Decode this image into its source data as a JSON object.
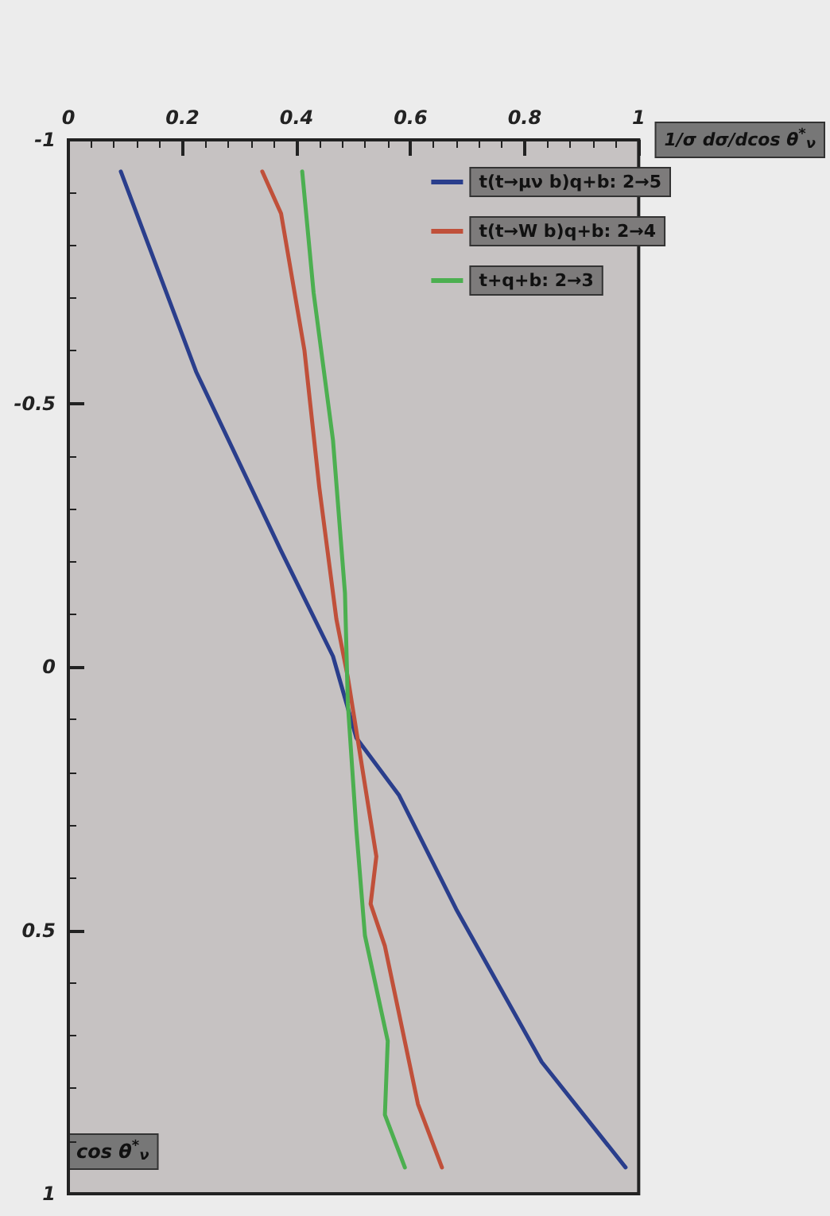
{
  "chart_data": {
    "type": "line",
    "ylabel": "cos θ$^{*}$$_{ν}$",
    "xlabel": "1/σ dσ/dcos θ$^{*}$$_{ν}$",
    "ylim": [
      1,
      -1
    ],
    "yticks": [
      -1,
      -0.5,
      0,
      0.5,
      1
    ],
    "xlim": [
      0,
      1
    ],
    "xticks": [
      0,
      0.2,
      0.4,
      0.6,
      0.8,
      1
    ],
    "grid": false,
    "legend": "top right",
    "marker": "none",
    "line_style": "solid",
    "series": [
      {
        "name": "t(t→μν b)q+b: 2→5",
        "color": "#2a3e8c",
        "values": [
          -0.94,
          -0.56,
          -0.22,
          -0.02,
          0.135,
          0.244,
          0.46,
          0.75,
          0.95
        ],
        "x": [
          0.092,
          0.224,
          0.373,
          0.464,
          0.505,
          0.58,
          0.68,
          0.83,
          0.977
        ]
      },
      {
        "name": "t(t→W b)q+b: 2→4",
        "color": "#c0503a",
        "values": [
          -0.94,
          -0.86,
          -0.6,
          -0.34,
          -0.09,
          0.02,
          0.36,
          0.45,
          0.53,
          0.83,
          0.95
        ],
        "x": [
          0.34,
          0.373,
          0.414,
          0.44,
          0.47,
          0.49,
          0.54,
          0.53,
          0.555,
          0.613,
          0.655
        ]
      },
      {
        "name": "t+q+b: 2→3",
        "color": "#4caf50",
        "values": [
          -0.94,
          -0.71,
          -0.43,
          -0.14,
          0.07,
          0.31,
          0.51,
          0.71,
          0.85,
          0.95
        ],
        "x": [
          0.41,
          0.43,
          0.464,
          0.485,
          0.49,
          0.505,
          0.52,
          0.56,
          0.555,
          0.59
        ]
      }
    ]
  }
}
